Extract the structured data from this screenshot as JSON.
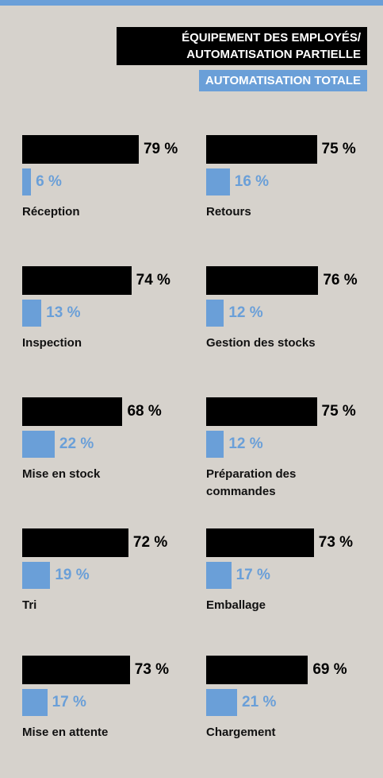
{
  "chart_data": {
    "type": "bar",
    "orientation": "horizontal",
    "categories": [
      "Réception",
      "Retours",
      "Inspection",
      "Gestion des stocks",
      "Mise en stock",
      "Préparation des commandes",
      "Tri",
      "Emballage",
      "Mise en attente",
      "Chargement"
    ],
    "series": [
      {
        "name": "ÉQUIPEMENT DES EMPLOYÉS/ AUTOMATISATION PARTIELLE",
        "color": "#000000",
        "values": [
          79,
          75,
          74,
          76,
          68,
          75,
          72,
          73,
          73,
          69
        ],
        "value_labels": [
          "79 %",
          "75 %",
          "74 %",
          "76 %",
          "68 %",
          "75 %",
          "72 %",
          "73 %",
          "73 %",
          "69 %"
        ]
      },
      {
        "name": "AUTOMATISATION TOTALE",
        "color": "#6a9fd8",
        "values": [
          6,
          16,
          13,
          12,
          22,
          12,
          19,
          17,
          17,
          21
        ],
        "value_labels": [
          "6 %",
          "16 %",
          "13 %",
          "12 %",
          "22 %",
          "12 %",
          "19 %",
          "17 %",
          "17 %",
          "21 %"
        ]
      }
    ]
  }
}
